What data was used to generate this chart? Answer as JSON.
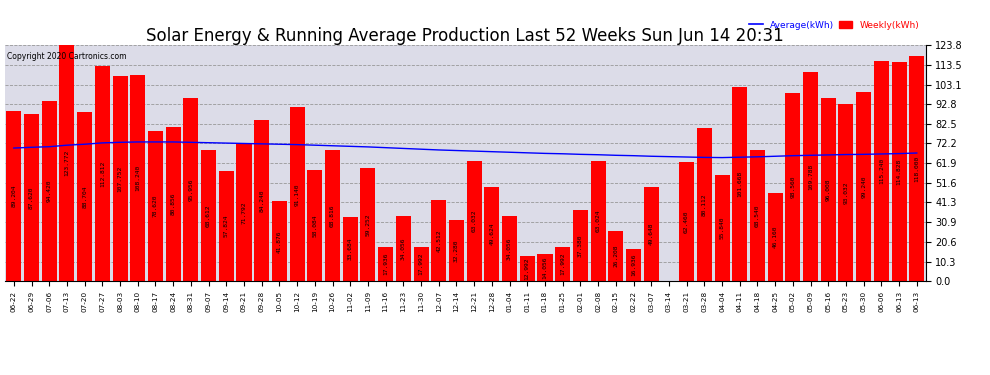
{
  "title": "Solar Energy & Running Average Production Last 52 Weeks Sun Jun 14 20:31",
  "copyright": "Copyright 2020 Cartronics.com",
  "legend_avg": "Average(kWh)",
  "legend_weekly": "Weekly(kWh)",
  "bar_color": "#FF0000",
  "avg_line_color": "#0000FF",
  "background_color": "#FFFFFF",
  "plot_bg_color": "#DCDCE8",
  "ylim": [
    0,
    123.8
  ],
  "yticks": [
    0.0,
    10.3,
    20.6,
    30.9,
    41.3,
    51.6,
    61.9,
    72.2,
    82.5,
    92.8,
    103.1,
    113.5,
    123.8
  ],
  "categories": [
    "06-22",
    "06-29",
    "07-06",
    "07-13",
    "07-20",
    "07-27",
    "08-03",
    "08-10",
    "08-17",
    "08-24",
    "08-31",
    "09-07",
    "09-14",
    "09-21",
    "09-28",
    "10-05",
    "10-12",
    "10-19",
    "10-26",
    "11-02",
    "11-09",
    "11-16",
    "11-23",
    "11-30",
    "12-07",
    "12-14",
    "12-21",
    "12-28",
    "01-04",
    "01-11",
    "01-18",
    "01-25",
    "02-01",
    "02-08",
    "02-15",
    "02-22",
    "03-07",
    "03-14",
    "03-21",
    "03-28",
    "04-04",
    "04-11",
    "04-18",
    "04-25",
    "05-02",
    "05-09",
    "05-16",
    "05-23",
    "05-30",
    "06-06",
    "06-13",
    "06-13"
  ],
  "values": [
    89.204,
    87.62,
    94.42,
    123.772,
    88.704,
    112.812,
    107.752,
    108.24,
    78.62,
    80.856,
    95.956,
    68.612,
    57.824,
    71.792,
    84.24,
    41.876,
    91.14,
    58.084,
    68.816,
    33.684,
    59.252,
    17.936,
    34.056,
    17.992,
    42.512,
    32.28,
    63.032,
    49.624,
    34.056,
    12.992,
    14.056,
    17.992,
    37.38,
    63.024,
    26.208,
    16.936,
    49.648,
    0.096,
    62.46,
    80.112,
    55.84,
    101.668,
    68.54,
    46.16,
    98.56,
    109.788,
    96.008,
    93.032,
    99.24,
    115.24,
    114.828,
    118.0
  ],
  "avg_values": [
    69.8,
    70.2,
    70.5,
    71.3,
    71.8,
    72.5,
    72.8,
    73.0,
    73.0,
    73.0,
    72.8,
    72.6,
    72.4,
    72.2,
    72.0,
    71.8,
    71.6,
    71.3,
    71.0,
    70.7,
    70.4,
    70.0,
    69.6,
    69.2,
    68.8,
    68.5,
    68.2,
    67.9,
    67.6,
    67.3,
    67.0,
    66.8,
    66.5,
    66.3,
    66.0,
    65.8,
    65.5,
    65.3,
    65.1,
    64.9,
    64.8,
    65.0,
    65.2,
    65.5,
    65.8,
    66.0,
    66.2,
    66.4,
    66.5,
    66.7,
    66.9,
    67.2
  ],
  "grid_color": "#999999",
  "title_fontsize": 12,
  "tick_fontsize": 5.2,
  "value_fontsize": 4.5
}
